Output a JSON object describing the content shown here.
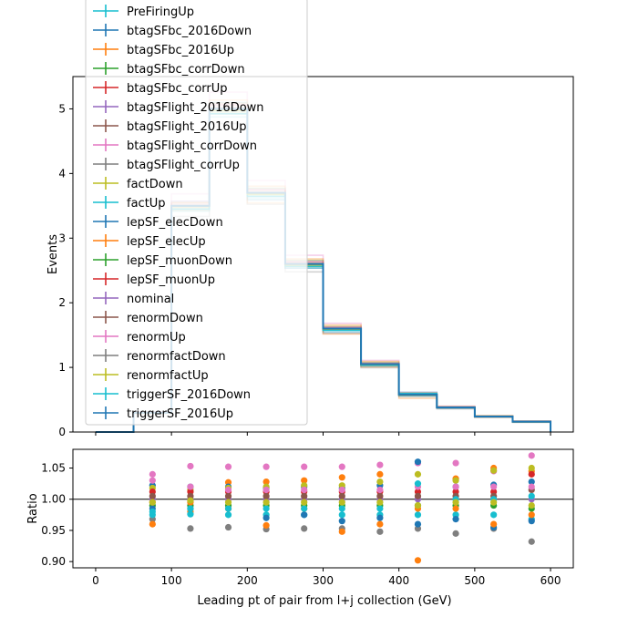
{
  "chart_data": {
    "type": "line",
    "upper": {
      "ylabel": "Events",
      "ylim": [
        0,
        5.5
      ],
      "yticks": [
        0,
        1,
        2,
        3,
        4,
        5
      ],
      "ytick_labels": [
        "0",
        "1",
        "2",
        "3",
        "4",
        "5"
      ],
      "bin_edges": [
        0,
        50,
        100,
        150,
        200,
        250,
        300,
        350,
        400,
        450,
        500,
        550,
        600
      ],
      "nominal": [
        0.0,
        0.3,
        3.5,
        5.0,
        3.7,
        2.6,
        1.6,
        1.05,
        0.58,
        0.38,
        0.24,
        0.16
      ],
      "legend_position": "upper left",
      "series": [
        {
          "name": "PreFiringUp",
          "color": "#17becf"
        },
        {
          "name": "btagSFbc_2016Down",
          "color": "#1f77b4"
        },
        {
          "name": "btagSFbc_2016Up",
          "color": "#ff7f0e"
        },
        {
          "name": "btagSFbc_corrDown",
          "color": "#2ca02c"
        },
        {
          "name": "btagSFbc_corrUp",
          "color": "#d62728"
        },
        {
          "name": "btagSFlight_2016Down",
          "color": "#9467bd"
        },
        {
          "name": "btagSFlight_2016Up",
          "color": "#8c564b"
        },
        {
          "name": "btagSFlight_corrDown",
          "color": "#e377c2"
        },
        {
          "name": "btagSFlight_corrUp",
          "color": "#7f7f7f"
        },
        {
          "name": "factDown",
          "color": "#bcbd22"
        },
        {
          "name": "factUp",
          "color": "#17becf"
        },
        {
          "name": "lepSF_elecDown",
          "color": "#1f77b4"
        },
        {
          "name": "lepSF_elecUp",
          "color": "#ff7f0e"
        },
        {
          "name": "lepSF_muonDown",
          "color": "#2ca02c"
        },
        {
          "name": "lepSF_muonUp",
          "color": "#d62728"
        },
        {
          "name": "nominal",
          "color": "#9467bd"
        },
        {
          "name": "renormDown",
          "color": "#8c564b"
        },
        {
          "name": "renormUp",
          "color": "#e377c2"
        },
        {
          "name": "renormfactDown",
          "color": "#7f7f7f"
        },
        {
          "name": "renormfactUp",
          "color": "#bcbd22"
        },
        {
          "name": "triggerSF_2016Down",
          "color": "#17becf"
        },
        {
          "name": "triggerSF_2016Up",
          "color": "#1f77b4"
        }
      ]
    },
    "lower": {
      "ylabel": "Ratio",
      "ylim": [
        0.89,
        1.08
      ],
      "yticks": [
        0.9,
        0.95,
        1.0,
        1.05
      ],
      "ytick_labels": [
        "0.90",
        "0.95",
        "1.00",
        "1.05"
      ],
      "reference_line": 1.0,
      "x": [
        75,
        125,
        175,
        225,
        275,
        325,
        375,
        425,
        475,
        525,
        575
      ],
      "points": [
        {
          "color": "#e377c2",
          "y": [
            1.04,
            1.053,
            1.052,
            1.052,
            1.052,
            1.052,
            1.055,
            1.058,
            1.058,
            1.045,
            1.07
          ]
        },
        {
          "color": "#7f7f7f",
          "y": [
            0.968,
            0.953,
            0.955,
            0.952,
            0.953,
            0.953,
            0.948,
            0.953,
            0.945,
            0.953,
            0.932
          ]
        },
        {
          "color": "#ff7f0e",
          "y": [
            0.96,
            0.98,
            1.027,
            1.028,
            1.03,
            1.035,
            1.04,
            0.902,
            1.033,
            1.05,
            1.045
          ]
        },
        {
          "color": "#1f77b4",
          "y": [
            1.022,
            1.02,
            1.02,
            1.018,
            1.02,
            1.018,
            1.022,
            1.06,
            1.02,
            1.023,
            1.028
          ]
        },
        {
          "color": "#bcbd22",
          "y": [
            1.018,
            1.015,
            1.018,
            1.02,
            1.022,
            1.022,
            1.028,
            1.04,
            1.03,
            1.046,
            1.05
          ]
        },
        {
          "color": "#d62728",
          "y": [
            1.012,
            1.012,
            1.012,
            1.012,
            1.012,
            1.012,
            1.012,
            1.012,
            1.012,
            1.012,
            1.04
          ]
        },
        {
          "color": "#9467bd",
          "y": [
            1.0,
            1.0,
            1.0,
            1.0,
            1.0,
            1.0,
            1.0,
            1.0,
            1.0,
            1.0,
            1.0
          ]
        },
        {
          "color": "#8c564b",
          "y": [
            1.005,
            1.005,
            1.005,
            1.005,
            1.005,
            1.005,
            1.005,
            1.005,
            1.005,
            1.005,
            1.015
          ]
        },
        {
          "color": "#2ca02c",
          "y": [
            0.99,
            0.99,
            0.99,
            0.99,
            0.99,
            0.99,
            0.99,
            0.99,
            0.99,
            0.99,
            0.985
          ]
        },
        {
          "color": "#17becf",
          "y": [
            0.975,
            0.976,
            0.975,
            0.975,
            0.975,
            0.975,
            0.975,
            0.975,
            0.975,
            0.975,
            0.968
          ]
        },
        {
          "color": "#1f77b4",
          "y": [
            0.985,
            0.985,
            0.985,
            0.97,
            0.975,
            0.965,
            0.97,
            0.96,
            0.968,
            0.955,
            0.965
          ]
        },
        {
          "color": "#ff7f0e",
          "y": [
            0.995,
            0.995,
            0.985,
            0.958,
            0.985,
            0.948,
            0.96,
            0.985,
            0.985,
            0.96,
            0.975
          ]
        },
        {
          "color": "#e377c2",
          "y": [
            1.03,
            1.02,
            1.015,
            1.015,
            1.015,
            1.015,
            1.015,
            1.02,
            1.02,
            1.02,
            1.02
          ]
        },
        {
          "color": "#17becf",
          "y": [
            0.98,
            0.985,
            0.985,
            0.985,
            0.985,
            0.985,
            0.985,
            1.025,
            1.0,
            1.0,
            1.005
          ]
        },
        {
          "color": "#bcbd22",
          "y": [
            0.995,
            0.998,
            0.995,
            0.995,
            0.995,
            0.995,
            0.995,
            0.99,
            0.995,
            0.995,
            0.99
          ]
        }
      ]
    },
    "xlabel": "Leading pt of pair from l+j collection (GeV)",
    "xlim": [
      -30,
      630
    ],
    "xticks": [
      0,
      100,
      200,
      300,
      400,
      500,
      600
    ],
    "xtick_labels": [
      "0",
      "100",
      "200",
      "300",
      "400",
      "500",
      "600"
    ]
  }
}
